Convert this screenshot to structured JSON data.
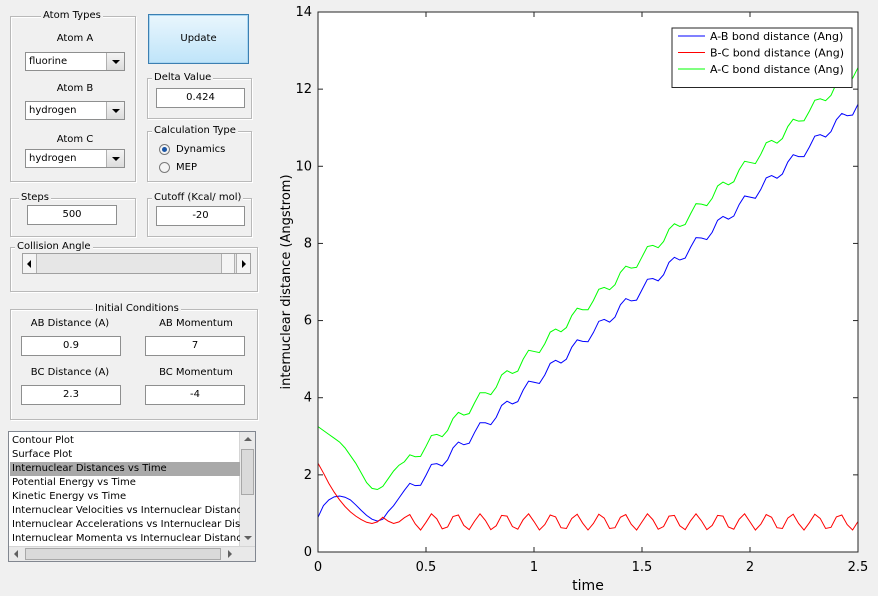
{
  "atom_types": {
    "title": "Atom Types",
    "atom_a": {
      "label": "Atom A",
      "value": "fluorine"
    },
    "atom_b": {
      "label": "Atom B",
      "value": "hydrogen"
    },
    "atom_c": {
      "label": "Atom C",
      "value": "hydrogen"
    }
  },
  "update_button": "Update",
  "delta_value": {
    "title": "Delta Value",
    "value": "0.424"
  },
  "calculation_type": {
    "title": "Calculation Type",
    "options": [
      "Dynamics",
      "MEP"
    ],
    "selected": 0
  },
  "steps": {
    "title": "Steps",
    "value": "500"
  },
  "cutoff": {
    "title": "Cutoff (Kcal/ mol)",
    "value": "-20"
  },
  "collision_angle": {
    "title": "Collision Angle"
  },
  "initial_conditions": {
    "title": "Initial Conditions",
    "fields": [
      {
        "label": "AB Distance (A)",
        "value": "0.9"
      },
      {
        "label": "AB Momentum",
        "value": "7"
      },
      {
        "label": "BC Distance (A)",
        "value": "2.3"
      },
      {
        "label": "BC Momentum",
        "value": "-4"
      }
    ]
  },
  "plot_list": {
    "items": [
      "Contour Plot",
      "Surface Plot",
      "Internuclear Distances vs Time",
      "Potential Energy vs Time",
      "Kinetic Energy vs Time",
      "Internuclear Velocities vs Internuclear Distance",
      "Internuclear Accelerations vs Internuclear Distance",
      "Internuclear Momenta vs Internuclear Distance"
    ],
    "selected": 2
  },
  "chart_data": {
    "type": "line",
    "x_label": "time",
    "y_label": "internuclear distance (Angstrom)",
    "xlim": [
      0,
      2.5
    ],
    "ylim": [
      0,
      14
    ],
    "xticks": [
      0,
      0.5,
      1,
      1.5,
      2,
      2.5
    ],
    "yticks": [
      0,
      2,
      4,
      6,
      8,
      10,
      12,
      14
    ],
    "grid": false,
    "legend": "northeast",
    "x": [
      0,
      0.025,
      0.05,
      0.075,
      0.1,
      0.125,
      0.15,
      0.175,
      0.2,
      0.225,
      0.25,
      0.275,
      0.3,
      0.325,
      0.35,
      0.375,
      0.4,
      0.425,
      0.45,
      0.475,
      0.5,
      0.525,
      0.55,
      0.575,
      0.6,
      0.625,
      0.65,
      0.675,
      0.7,
      0.725,
      0.75,
      0.775,
      0.8,
      0.825,
      0.85,
      0.875,
      0.9,
      0.925,
      0.95,
      0.975,
      1,
      1.025,
      1.05,
      1.075,
      1.1,
      1.125,
      1.15,
      1.175,
      1.2,
      1.225,
      1.25,
      1.275,
      1.3,
      1.325,
      1.35,
      1.375,
      1.4,
      1.425,
      1.45,
      1.475,
      1.5,
      1.525,
      1.55,
      1.575,
      1.6,
      1.625,
      1.65,
      1.675,
      1.7,
      1.725,
      1.75,
      1.775,
      1.8,
      1.825,
      1.85,
      1.875,
      1.9,
      1.925,
      1.95,
      1.975,
      2,
      2.025,
      2.05,
      2.075,
      2.1,
      2.125,
      2.15,
      2.175,
      2.2,
      2.225,
      2.25,
      2.275,
      2.3,
      2.325,
      2.35,
      2.375,
      2.4,
      2.425,
      2.45,
      2.475,
      2.5
    ],
    "series": [
      {
        "name": "A-B bond distance (Ang)",
        "color": "#0000ff",
        "values": [
          0.9,
          1.2,
          1.35,
          1.43,
          1.45,
          1.42,
          1.35,
          1.22,
          1.08,
          0.95,
          0.85,
          0.8,
          0.85,
          1.05,
          1.2,
          1.4,
          1.6,
          1.78,
          1.72,
          1.73,
          1.99,
          2.27,
          2.29,
          2.23,
          2.39,
          2.7,
          2.85,
          2.78,
          2.82,
          3.1,
          3.35,
          3.35,
          3.3,
          3.49,
          3.8,
          3.91,
          3.84,
          3.9,
          4.2,
          4.43,
          4.4,
          4.37,
          4.59,
          4.89,
          4.97,
          4.9,
          5.0,
          5.31,
          5.5,
          5.46,
          5.45,
          5.69,
          5.98,
          6.03,
          5.96,
          6.09,
          6.41,
          6.57,
          6.51,
          6.53,
          6.8,
          7.07,
          7.09,
          7.03,
          7.19,
          7.51,
          7.64,
          7.57,
          7.62,
          7.9,
          8.15,
          8.14,
          8.1,
          8.29,
          8.6,
          8.7,
          8.63,
          8.71,
          9.01,
          9.23,
          9.2,
          9.17,
          9.4,
          9.7,
          9.76,
          9.69,
          9.8,
          10.11,
          10.3,
          10.25,
          10.25,
          10.5,
          10.78,
          10.82,
          10.76,
          10.9,
          11.21,
          11.37,
          11.31,
          11.33,
          11.61
        ]
      },
      {
        "name": "B-C bond distance (Ang)",
        "color": "#ff0000",
        "values": [
          2.3,
          2.05,
          1.78,
          1.55,
          1.35,
          1.18,
          1.04,
          0.93,
          0.84,
          0.77,
          0.74,
          0.78,
          0.9,
          0.8,
          0.74,
          0.78,
          0.89,
          0.97,
          0.73,
          0.57,
          0.77,
          0.99,
          0.86,
          0.6,
          0.65,
          0.92,
          0.96,
          0.69,
          0.58,
          0.8,
          0.99,
          0.82,
          0.58,
          0.68,
          0.95,
          0.93,
          0.66,
          0.59,
          0.84,
          0.99,
          0.79,
          0.57,
          0.71,
          0.96,
          0.91,
          0.63,
          0.61,
          0.87,
          0.98,
          0.75,
          0.57,
          0.74,
          0.98,
          0.88,
          0.61,
          0.63,
          0.9,
          0.97,
          0.72,
          0.57,
          0.78,
          0.99,
          0.84,
          0.59,
          0.66,
          0.93,
          0.95,
          0.68,
          0.58,
          0.81,
          0.99,
          0.81,
          0.58,
          0.69,
          0.95,
          0.93,
          0.65,
          0.59,
          0.85,
          0.99,
          0.78,
          0.57,
          0.72,
          0.97,
          0.9,
          0.63,
          0.61,
          0.88,
          0.98,
          0.74,
          0.57,
          0.76,
          0.98,
          0.87,
          0.61,
          0.64,
          0.91,
          0.96,
          0.71,
          0.57,
          0.79
        ]
      },
      {
        "name": "A-C bond distance (Ang)",
        "color": "#00ff00",
        "values": [
          3.25,
          3.15,
          3.05,
          2.95,
          2.85,
          2.7,
          2.5,
          2.3,
          2.05,
          1.8,
          1.65,
          1.62,
          1.7,
          1.9,
          2.1,
          2.25,
          2.34,
          2.52,
          2.47,
          2.48,
          2.74,
          3.02,
          3.05,
          2.99,
          3.15,
          3.46,
          3.62,
          3.55,
          3.59,
          3.87,
          4.13,
          4.13,
          4.08,
          4.27,
          4.59,
          4.7,
          4.63,
          4.69,
          5.0,
          5.23,
          5.2,
          5.17,
          5.4,
          5.7,
          5.78,
          5.71,
          5.82,
          6.13,
          6.32,
          6.28,
          6.28,
          6.52,
          6.81,
          6.86,
          6.8,
          6.93,
          7.25,
          7.41,
          7.36,
          7.38,
          7.65,
          7.92,
          7.95,
          7.89,
          8.05,
          8.37,
          8.51,
          8.44,
          8.49,
          8.77,
          9.03,
          9.02,
          8.98,
          9.17,
          9.49,
          9.59,
          9.52,
          9.6,
          9.91,
          10.13,
          10.1,
          10.07,
          10.31,
          10.61,
          10.67,
          10.6,
          10.72,
          11.03,
          11.22,
          11.17,
          11.18,
          11.43,
          11.71,
          11.75,
          11.7,
          11.84,
          12.15,
          12.31,
          12.26,
          12.28,
          12.56
        ]
      }
    ]
  }
}
